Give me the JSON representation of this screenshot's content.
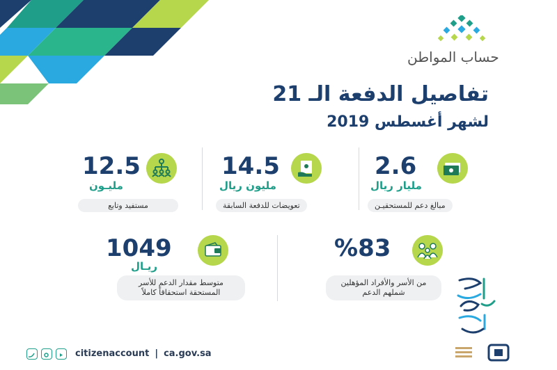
{
  "colors": {
    "navy": "#1d3f6e",
    "teal": "#1f9e8a",
    "green": "#b6d64b",
    "blue": "#29a9e0",
    "pill": "#eef0f2"
  },
  "logo": {
    "text": "حساب المواطن",
    "icon": "citizen-account-logo-icon"
  },
  "header": {
    "title": "تفاصيل الدفعة الـ 21",
    "subtitle": "لشهر أغسطس 2019"
  },
  "stats_row1": [
    {
      "value": "2.6",
      "unit": "مليار ريال",
      "label": "مبالغ دعم للمستحقيـن",
      "icon": "money-stack-icon"
    },
    {
      "value": "14.5",
      "unit": "مليون ريال",
      "label": "تعويضات للدفعة السابقة",
      "icon": "cash-hand-icon"
    },
    {
      "value": "12.5",
      "unit": "مليـون",
      "label": "مستفيد وتابع",
      "icon": "people-hierarchy-icon"
    }
  ],
  "stats_row2": [
    {
      "value": "%83",
      "label": "من الأسر والأفراد المؤهلين شملهم الدعم",
      "icon": "family-icon"
    },
    {
      "value": "1049",
      "unit": "ريـال",
      "label": "متوسط مقدار الدعم للأسر المستحقة استحقاقاً كاملاً",
      "icon": "wallet-icon"
    }
  ],
  "footer": {
    "handle": "citizenaccount",
    "separator": "|",
    "website": "ca.gov.sa",
    "social_icons": [
      "twitter-icon",
      "instagram-icon",
      "youtube-icon"
    ]
  },
  "calligraphy": {
    "icon": "calligraphy-emblem-icon"
  }
}
